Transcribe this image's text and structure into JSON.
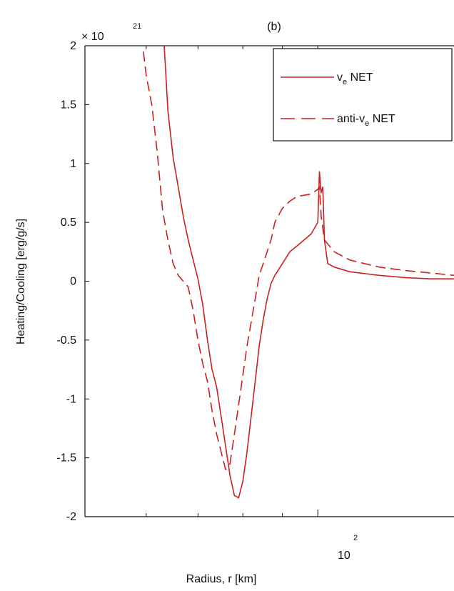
{
  "chart_data": {
    "type": "line",
    "panel_label": "(b)",
    "xlabel": "Radius, r [km]",
    "ylabel": "Heating/Cooling [erg/g/s]",
    "x_scale": "log",
    "xlim": [
      50,
      150
    ],
    "ylim": [
      -2,
      2
    ],
    "y_multiplier": {
      "base": "× 10",
      "exponent": "21"
    },
    "y_ticks": [
      "-2",
      "-1.5",
      "-1",
      "-0.5",
      "0",
      "0.5",
      "1",
      "1.5",
      "2"
    ],
    "x_major_tick": {
      "base": "10",
      "exponent": "2",
      "value": 100
    },
    "x_minor_ticks": [
      60,
      70,
      80,
      90
    ],
    "grid": false,
    "legend_position": "top-right",
    "series": [
      {
        "name": "ν_e NET",
        "label_main": "v",
        "label_sub": "e",
        "label_suffix": " NET",
        "style": "solid",
        "color": "#cc1f1f",
        "x": [
          63.3,
          64,
          65,
          66,
          67,
          68,
          69,
          70,
          71,
          72,
          73,
          74,
          75,
          76,
          77,
          78,
          79,
          80,
          81,
          82,
          83,
          84,
          85,
          86,
          87,
          88,
          90,
          92,
          94,
          96,
          98,
          99,
          100,
          100.5,
          101,
          101.5,
          102,
          103,
          105,
          110,
          120,
          130,
          140,
          150
        ],
        "y": [
          2.0,
          1.45,
          1.05,
          0.8,
          0.55,
          0.35,
          0.18,
          0.02,
          -0.2,
          -0.5,
          -0.75,
          -0.9,
          -1.15,
          -1.4,
          -1.65,
          -1.82,
          -1.84,
          -1.7,
          -1.45,
          -1.15,
          -0.85,
          -0.55,
          -0.33,
          -0.15,
          -0.02,
          0.05,
          0.15,
          0.25,
          0.3,
          0.35,
          0.4,
          0.45,
          0.5,
          0.93,
          0.75,
          0.8,
          0.35,
          0.15,
          0.12,
          0.08,
          0.05,
          0.03,
          0.02,
          0.02
        ]
      },
      {
        "name": "anti-ν_e NET",
        "label_main": "anti-v",
        "label_sub": "e",
        "label_suffix": " NET",
        "style": "dashed",
        "color": "#cc1f1f",
        "x": [
          59.5,
          60,
          61,
          62,
          63,
          64,
          65,
          66,
          67,
          68,
          69,
          70,
          71,
          72,
          73,
          74,
          75,
          76,
          77,
          78,
          79,
          80,
          81,
          82,
          83,
          84,
          85,
          86,
          87,
          88,
          90,
          92,
          94,
          96,
          98,
          100,
          100.5,
          101,
          102,
          105,
          110,
          120,
          130,
          140,
          150
        ],
        "y": [
          1.95,
          1.75,
          1.5,
          1.1,
          0.6,
          0.35,
          0.15,
          0.05,
          0.0,
          -0.05,
          -0.25,
          -0.5,
          -0.7,
          -0.85,
          -1.1,
          -1.3,
          -1.45,
          -1.6,
          -1.55,
          -1.3,
          -1.05,
          -0.8,
          -0.55,
          -0.35,
          -0.15,
          0.05,
          0.15,
          0.25,
          0.35,
          0.5,
          0.62,
          0.68,
          0.72,
          0.73,
          0.74,
          0.78,
          0.8,
          0.55,
          0.35,
          0.25,
          0.18,
          0.12,
          0.09,
          0.07,
          0.05
        ]
      }
    ]
  }
}
